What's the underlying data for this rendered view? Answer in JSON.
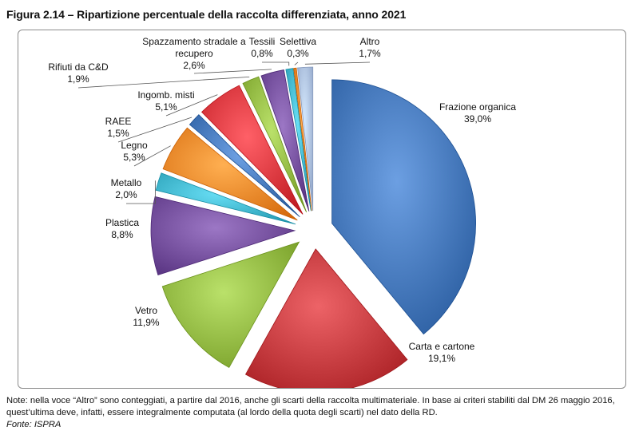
{
  "figure_title": "Figura 2.14 – Ripartizione percentuale della raccolta differenziata, anno 2021",
  "chart_data": {
    "type": "pie",
    "title": "",
    "slices": [
      {
        "label": "Frazione organica",
        "value_label": "39,0%",
        "value": 39.0,
        "color": "#3f72b5"
      },
      {
        "label": "Carta e cartone",
        "value_label": "19,1%",
        "value": 19.1,
        "color": "#c0363a"
      },
      {
        "label": "Vetro",
        "value_label": "11,9%",
        "value": 11.9,
        "color": "#8db43d"
      },
      {
        "label": "Plastica",
        "value_label": "8,8%",
        "value": 8.8,
        "color": "#6f4a98"
      },
      {
        "label": "Metallo",
        "value_label": "2,0%",
        "value": 2.0,
        "color": "#3bb1c8"
      },
      {
        "label": "Legno",
        "value_label": "5,3%",
        "value": 5.3,
        "color": "#ee8224"
      },
      {
        "label": "RAEE",
        "value_label": "1,5%",
        "value": 1.5,
        "color": "#3f72b5"
      },
      {
        "label": "Ingomb. misti",
        "value_label": "5,1%",
        "value": 5.1,
        "color": "#d8333a"
      },
      {
        "label": "Rifiuti da C&D",
        "value_label": "1,9%",
        "value": 1.9,
        "color": "#8db43d"
      },
      {
        "label": "Spazzamento stradale a recupero",
        "value_label": "2,6%",
        "value": 2.6,
        "color": "#6f4a98"
      },
      {
        "label": "Tessili",
        "value_label": "0,8%",
        "value": 0.8,
        "color": "#3bb1c8"
      },
      {
        "label": "Selettiva",
        "value_label": "0,3%",
        "value": 0.3,
        "color": "#ee8224"
      },
      {
        "label": "Altro",
        "value_label": "1,7%",
        "value": 1.7,
        "color": "#a9bde0"
      }
    ]
  },
  "note": "Note: nella voce “Altro” sono conteggiati, a partire dal 2016, anche gli scarti della raccolta multimateriale. In base ai criteri stabiliti dal DM 26 maggio 2016, quest’ultima deve, infatti, essere integralmente computata (al lordo della quota degli scarti) nel dato della RD.",
  "source": "Fonte: ISPRA"
}
